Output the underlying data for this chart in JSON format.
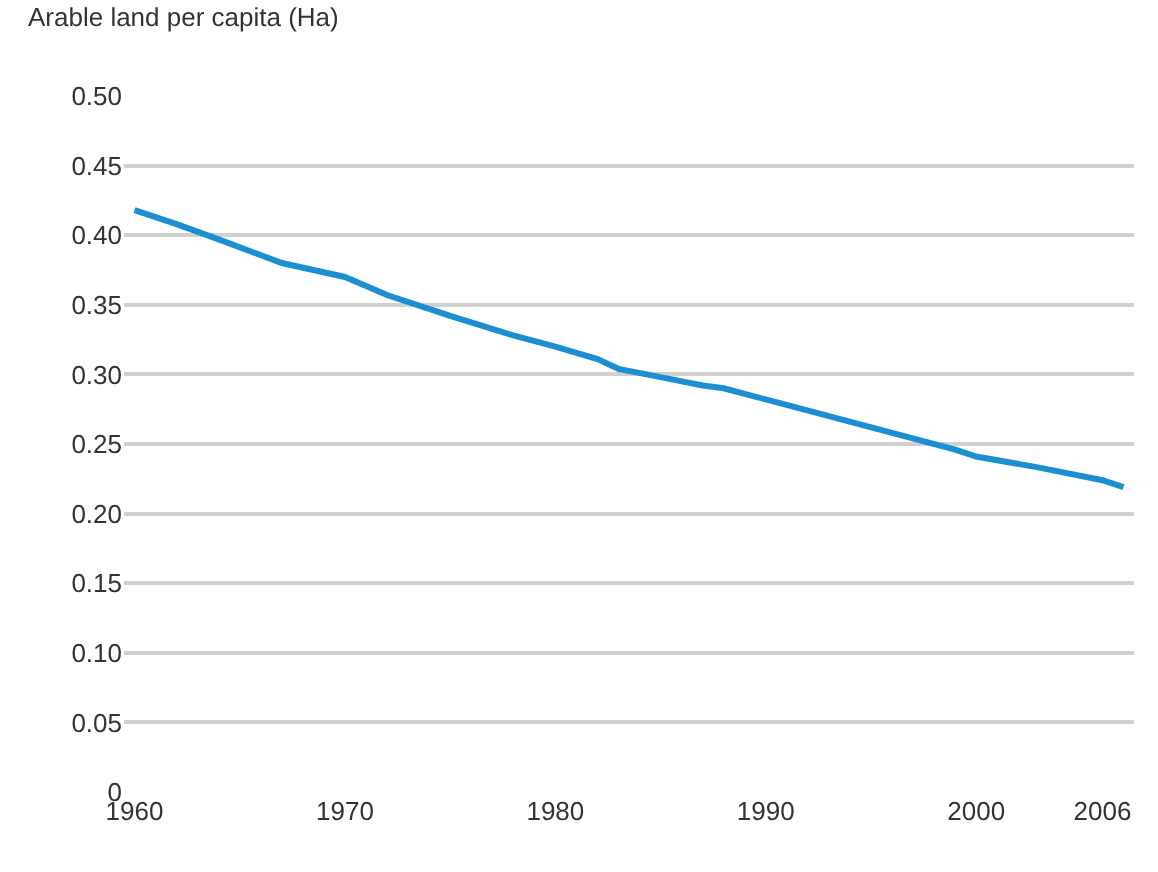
{
  "chart_data": {
    "type": "line",
    "ylabel": "Arable land per capita (Ha)",
    "x": [
      1960,
      1962,
      1964,
      1967,
      1970,
      1972,
      1975,
      1978,
      1980,
      1982,
      1983,
      1985,
      1987,
      1988,
      1990,
      1993,
      1996,
      1999,
      2000,
      2003,
      2006,
      2007
    ],
    "series": [
      {
        "color": "#1b8fd2",
        "values": [
          0.418,
          0.408,
          0.397,
          0.38,
          0.37,
          0.357,
          0.342,
          0.328,
          0.32,
          0.311,
          0.304,
          0.298,
          0.292,
          0.29,
          0.282,
          0.27,
          0.258,
          0.246,
          0.241,
          0.233,
          0.224,
          0.219
        ]
      }
    ],
    "xlim": [
      1959.5,
      2007.5
    ],
    "xticks": [
      1960,
      1970,
      1980,
      1990,
      2000,
      2006
    ],
    "ylim": [
      0,
      0.5
    ],
    "yticks": [
      {
        "value": 0,
        "label": "0"
      },
      0.05,
      {
        "value": 0.1,
        "label": "0.10"
      },
      0.15,
      {
        "value": 0.2,
        "label": "0.20"
      },
      0.25,
      {
        "value": 0.3,
        "label": "0.30"
      },
      0.35,
      {
        "value": 0.4,
        "label": "0.40"
      },
      0.45,
      {
        "value": 0.5,
        "label": "0.50"
      }
    ],
    "grid": "y",
    "legend": false,
    "line_style": "solid",
    "marker": "none"
  }
}
